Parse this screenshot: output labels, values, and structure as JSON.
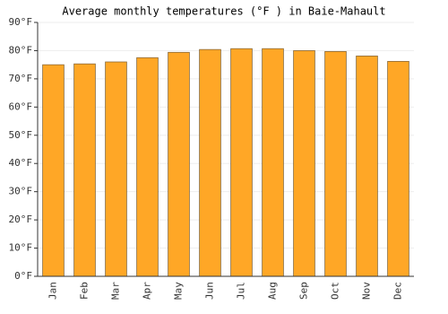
{
  "chart_data": {
    "type": "bar",
    "title": "Average monthly temperatures (°F ) in Baie-Mahault",
    "categories": [
      "Jan",
      "Feb",
      "Mar",
      "Apr",
      "May",
      "Jun",
      "Jul",
      "Aug",
      "Sep",
      "Oct",
      "Nov",
      "Dec"
    ],
    "values": [
      75,
      75.3,
      76,
      77.5,
      79.4,
      80.4,
      80.7,
      80.7,
      80,
      79.7,
      78.1,
      76.2
    ],
    "color": "#ffa726",
    "ylim": [
      0,
      90
    ],
    "yticks": [
      {
        "value": 0,
        "label": "0°F"
      },
      {
        "value": 10,
        "label": "10°F"
      },
      {
        "value": 20,
        "label": "20°F"
      },
      {
        "value": 30,
        "label": "30°F"
      },
      {
        "value": 40,
        "label": "40°F"
      },
      {
        "value": 50,
        "label": "50°F"
      },
      {
        "value": 60,
        "label": "60°F"
      },
      {
        "value": 70,
        "label": "70°F"
      },
      {
        "value": 80,
        "label": "80°F"
      },
      {
        "value": 90,
        "label": "90°F"
      }
    ],
    "grid": true
  }
}
